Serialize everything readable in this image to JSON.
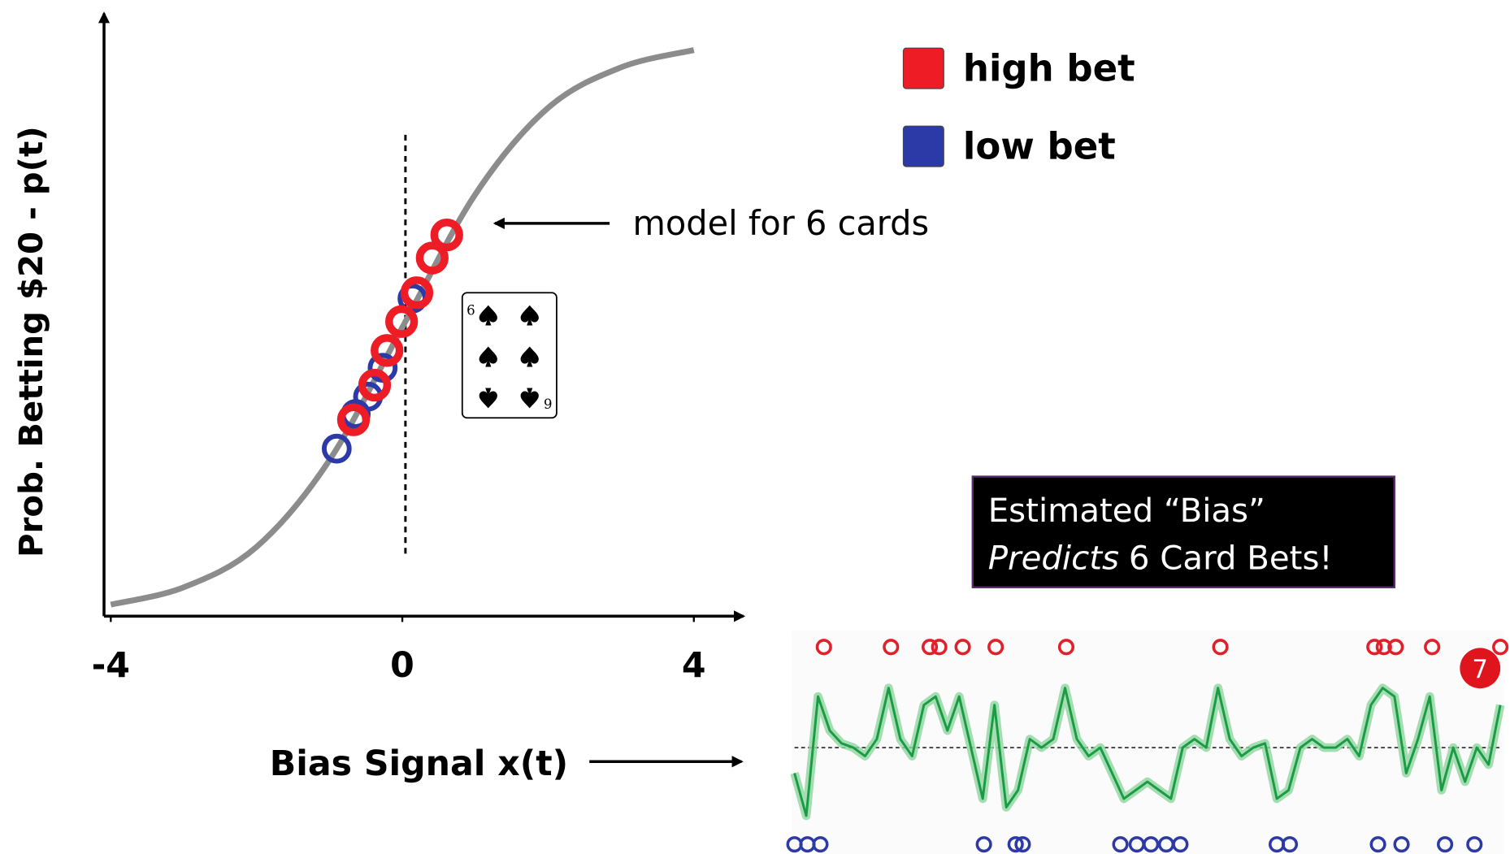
{
  "chart_data": [
    {
      "type": "scatter",
      "x_label": "Bias Signal x(t)",
      "y_label": "Prob. Betting $20 - p(t)",
      "annotation": "model for 6 cards",
      "card": "6",
      "box_text": [
        "Estimated “Bias”",
        "Predicts",
        "6 Card Bets!"
      ],
      "xlim": [
        -4,
        4.72
      ],
      "ylim": [
        0,
        1.05
      ],
      "xticks": [
        -4,
        0,
        4
      ],
      "legend": "upper right",
      "curve": {
        "color": "#8c8c8c",
        "x": [
          -4,
          -3,
          -2,
          -1,
          0,
          1,
          2,
          3,
          4
        ],
        "values": [
          0.02,
          0.05,
          0.12,
          0.27,
          0.5,
          0.73,
          0.88,
          0.95,
          0.98
        ]
      },
      "series": [
        {
          "name": "high bet",
          "color": "#ee1c25",
          "x": [
            -0.67,
            -0.38,
            -0.21,
            -0.01,
            0.2,
            0.41,
            0.61
          ],
          "values": [
            0.34,
            0.4,
            0.46,
            0.51,
            0.56,
            0.62,
            0.66
          ]
        },
        {
          "name": "low bet",
          "color": "#2b3aa6",
          "x": [
            -0.9,
            -0.64,
            -0.47,
            -0.27,
            0.14
          ],
          "values": [
            0.29,
            0.35,
            0.38,
            0.43,
            0.55
          ]
        }
      ]
    },
    {
      "type": "line",
      "color": "#1a9c45",
      "annotation": "7",
      "xlim": [
        0,
        60
      ],
      "ylim": [
        -1,
        1
      ],
      "values": [
        -0.3,
        -0.8,
        0.6,
        0.2,
        0.05,
        0.0,
        -0.1,
        0.1,
        0.7,
        0.1,
        -0.1,
        0.5,
        0.6,
        0.2,
        0.6,
        0.0,
        -0.6,
        0.5,
        -0.7,
        -0.5,
        0.1,
        0.0,
        0.1,
        0.7,
        0.1,
        -0.1,
        0.0,
        -0.3,
        -0.6,
        -0.5,
        -0.4,
        -0.5,
        -0.6,
        0.0,
        0.1,
        0.0,
        0.7,
        0.1,
        -0.1,
        0.0,
        0.05,
        -0.6,
        -0.5,
        0.0,
        0.1,
        0.0,
        0.0,
        0.1,
        -0.1,
        0.5,
        0.7,
        0.6,
        -0.3,
        0.1,
        0.6,
        -0.5,
        0.0,
        -0.4,
        0.0,
        -0.2,
        0.5
      ],
      "high_marks": {
        "color": "#e0202a",
        "x": [
          2.5,
          8.2,
          11.5,
          12.3,
          14.3,
          17.1,
          23.1,
          36.2,
          49.3,
          50.1,
          51.1,
          54.2,
          60
        ]
      },
      "low_marks": {
        "color": "#2b3aa6",
        "x": [
          0,
          1.1,
          2.2,
          16.1,
          18.8,
          19.4,
          27.7,
          29.1,
          30.3,
          31.6,
          32.8,
          41.0,
          42.1,
          49.6,
          51.6,
          55.3,
          57.8
        ]
      }
    }
  ]
}
